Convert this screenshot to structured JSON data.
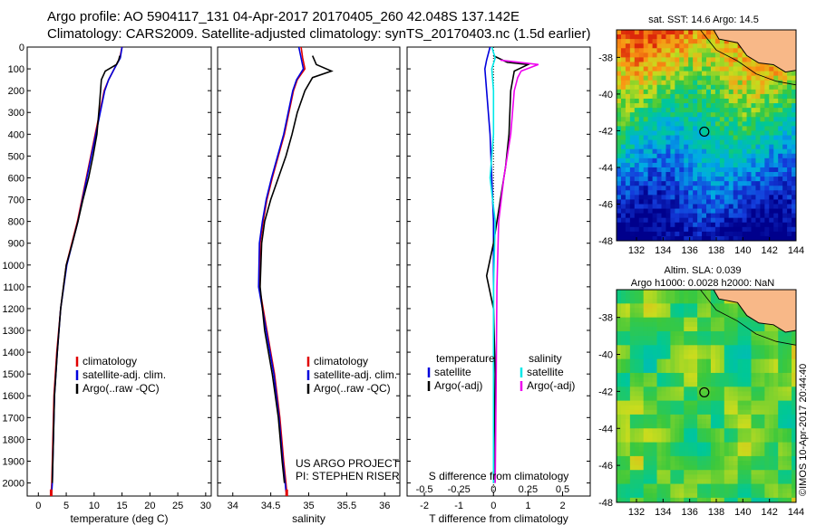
{
  "title_line1": "Argo profile: AO 5904117_131 04-Apr-2017 20170405_260 42.048S 137.142E",
  "title_line2": "Climatology: CARS2009. Satellite-adjusted climatology: synTS_20170403.nc (1.5d earlier)",
  "project_line1": "US ARGO PROJECT",
  "project_line2": "PI: STEPHEN RISER",
  "stamp": "©IMOS 10-Apr-2017 20:44:40",
  "colors": {
    "climatology": "#e00000",
    "satellite": "#0000dd",
    "argo": "#000000",
    "satellite_salinity": "#00e8e8",
    "argo_adj_salinity": "#ee00ee",
    "land": "#f8b888",
    "float_marker": "#000000"
  },
  "chart_data": [
    {
      "type": "line",
      "id": "temperature",
      "xlabel": "temperature (deg C)",
      "ylabel": "",
      "xlim": [
        -2,
        31
      ],
      "ylim": [
        2060,
        0
      ],
      "xticks": [
        "0",
        "5",
        "10",
        "15",
        "20",
        "25",
        "30"
      ],
      "yticks": [
        "0",
        "100",
        "200",
        "300",
        "400",
        "500",
        "600",
        "700",
        "800",
        "900",
        "1000",
        "1100",
        "1200",
        "1300",
        "1400",
        "1500",
        "1600",
        "1700",
        "1800",
        "1900",
        "2000"
      ],
      "legend": [
        "climatology",
        "satellite-adj. clim.",
        "Argo(..raw -QC)"
      ],
      "series": [
        {
          "name": "climatology",
          "color": "#e00000",
          "x": [
            15.0,
            14.6,
            13.6,
            12.6,
            11.8,
            11.0,
            10.2,
            9.4,
            8.6,
            7.8,
            7.0,
            6.0,
            5.0,
            4.0,
            3.3,
            2.8,
            2.6,
            2.4,
            2.3
          ],
          "y": [
            0,
            50,
            100,
            150,
            200,
            300,
            400,
            500,
            600,
            700,
            800,
            900,
            1000,
            1200,
            1400,
            1600,
            1800,
            2000,
            2040
          ]
        },
        {
          "name": "satellite-adj. clim.",
          "color": "#0000dd",
          "x": [
            15.0,
            14.7,
            13.6,
            12.6,
            11.9,
            11.1,
            10.3,
            9.5,
            8.7,
            7.9,
            7.1,
            6.1,
            5.1,
            4.0,
            3.4,
            2.9,
            2.7,
            2.5,
            2.4
          ],
          "y": [
            0,
            50,
            100,
            150,
            200,
            300,
            400,
            500,
            600,
            700,
            800,
            900,
            1000,
            1200,
            1400,
            1600,
            1800,
            2000,
            2040
          ]
        },
        {
          "name": "Argo(..raw -QC)",
          "color": "#000000",
          "x": [
            14.6,
            14.4,
            14.0,
            12.0,
            11.3,
            11.0,
            10.5,
            9.8,
            9.0,
            8.0,
            7.1,
            6.1,
            5.0,
            4.0,
            3.4,
            2.9,
            2.7,
            2.5
          ],
          "y": [
            40,
            60,
            80,
            110,
            150,
            250,
            400,
            500,
            600,
            700,
            800,
            900,
            1000,
            1200,
            1400,
            1600,
            1800,
            2000
          ]
        }
      ]
    },
    {
      "type": "line",
      "id": "salinity",
      "xlabel": "salinity",
      "ylabel": "",
      "xlim": [
        33.8,
        36.2
      ],
      "ylim": [
        2060,
        0
      ],
      "xticks": [
        "34",
        "34.5",
        "35",
        "35.5",
        "36"
      ],
      "legend": [
        "climatology",
        "satellite-adj. clim.",
        "Argo(..raw -QC)"
      ],
      "series": [
        {
          "name": "climatology",
          "color": "#e00000",
          "x": [
            34.9,
            34.92,
            34.95,
            34.85,
            34.8,
            34.74,
            34.68,
            34.6,
            34.52,
            34.45,
            34.4,
            34.36,
            34.35,
            34.45,
            34.55,
            34.62,
            34.67,
            34.7,
            34.71
          ],
          "y": [
            0,
            50,
            100,
            150,
            200,
            300,
            400,
            500,
            600,
            700,
            800,
            900,
            1100,
            1300,
            1500,
            1700,
            1900,
            2000,
            2040
          ]
        },
        {
          "name": "satellite-adj. clim.",
          "color": "#0000dd",
          "x": [
            34.87,
            34.9,
            34.93,
            34.84,
            34.79,
            34.73,
            34.67,
            34.59,
            34.51,
            34.44,
            34.39,
            34.35,
            34.34,
            34.44,
            34.54,
            34.61,
            34.66,
            34.69,
            34.7
          ],
          "y": [
            0,
            50,
            100,
            150,
            200,
            300,
            400,
            500,
            600,
            700,
            800,
            900,
            1100,
            1300,
            1500,
            1700,
            1900,
            2000,
            2040
          ]
        },
        {
          "name": "Argo(..raw -QC)",
          "color": "#000000",
          "x": [
            35.05,
            35.1,
            35.3,
            35.05,
            34.95,
            34.85,
            34.78,
            34.7,
            34.6,
            34.5,
            34.42,
            34.38,
            34.36,
            34.42,
            34.52,
            34.6,
            34.65,
            34.68
          ],
          "y": [
            40,
            80,
            110,
            140,
            200,
            300,
            400,
            500,
            600,
            700,
            800,
            900,
            1100,
            1300,
            1500,
            1700,
            1900,
            2000
          ]
        }
      ]
    },
    {
      "type": "line",
      "id": "difference",
      "xlabel": "T difference from climatology",
      "xlabel_top": "S difference from climatology",
      "xlim": [
        -2.5,
        2.8
      ],
      "ylim": [
        2060,
        0
      ],
      "xticks": [
        "-2",
        "-1",
        "0",
        "1",
        "2"
      ],
      "xticks_s": [
        "-0.5",
        "-0.25",
        "0",
        "0.25",
        "0.5"
      ],
      "legend_headers": [
        "temperature",
        "salinity"
      ],
      "legend": [
        "satellite",
        "Argo(-adj)",
        "satellite",
        "Argo(-adj)"
      ],
      "series": [
        {
          "name": "satellite",
          "color": "#0000dd",
          "x": [
            -0.1,
            -0.2,
            -0.25,
            -0.2,
            -0.1,
            -0.05,
            0.0,
            0.0,
            0.0,
            0.0
          ],
          "y": [
            0,
            60,
            100,
            200,
            400,
            600,
            800,
            1000,
            1500,
            2000
          ]
        },
        {
          "name": "Argo(-adj)",
          "color": "#000000",
          "x": [
            0.0,
            0.4,
            1.0,
            0.6,
            0.5,
            0.45,
            0.35,
            0.2,
            0.0,
            -0.2,
            0.0,
            0.05,
            0.0
          ],
          "y": [
            40,
            70,
            80,
            110,
            200,
            400,
            550,
            700,
            900,
            1050,
            1200,
            1500,
            2000
          ]
        },
        {
          "name": "satellite",
          "color": "#00e8e8",
          "x": [
            -0.05,
            0.05,
            -0.05,
            0.0,
            0.0,
            -0.1,
            0.05,
            0.0,
            0.0,
            0.0
          ],
          "y": [
            0,
            50,
            100,
            200,
            400,
            600,
            800,
            1100,
            1500,
            2000
          ]
        },
        {
          "name": "Argo(-adj)",
          "color": "#ee00ee",
          "x": [
            0.2,
            1.3,
            0.8,
            0.7,
            0.6,
            0.5,
            0.3,
            0.15,
            0.1,
            0.08,
            0.05
          ],
          "y": [
            60,
            80,
            110,
            140,
            200,
            400,
            600,
            800,
            1100,
            1500,
            2000
          ]
        }
      ]
    },
    {
      "type": "heatmap",
      "id": "sst_map",
      "title": "sat. SST: 14.6  Argo: 14.5",
      "xlim": [
        130.5,
        144
      ],
      "ylim": [
        -48,
        -36.5
      ],
      "xticks": [
        "132",
        "134",
        "136",
        "138",
        "140",
        "142",
        "144"
      ],
      "yticks": [
        "-38",
        "-40",
        "-42",
        "-44",
        "-46",
        "-48"
      ],
      "float_position": [
        137.1,
        -42.05
      ]
    },
    {
      "type": "heatmap",
      "id": "sla_map",
      "title_line1": "Altim. SLA: 0.039",
      "title_line2": "Argo h1000: 0.0028  h2000: NaN",
      "xlim": [
        130.5,
        144
      ],
      "ylim": [
        -48,
        -36.5
      ],
      "xticks": [
        "132",
        "134",
        "136",
        "138",
        "140",
        "142",
        "144"
      ],
      "yticks": [
        "-38",
        "-40",
        "-42",
        "-44",
        "-46",
        "-48"
      ],
      "float_position": [
        137.1,
        -42.05
      ]
    }
  ]
}
